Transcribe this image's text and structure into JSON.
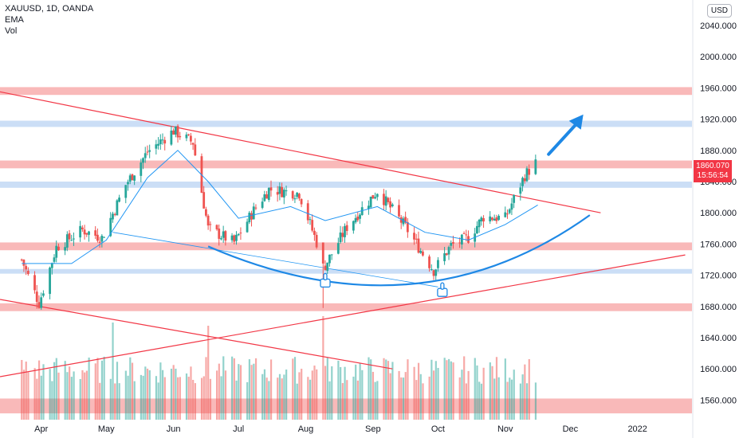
{
  "header": {
    "symbol_line": "XAUUSD, 1D, OANDA",
    "indicator_1": "EMA",
    "indicator_2": "Vol"
  },
  "currency": "USD",
  "last_price": {
    "value": "1860.070",
    "countdown": "15:56:54",
    "color": "#f23645"
  },
  "colors": {
    "up": "#26a69a",
    "down": "#ef5350",
    "ema": "#2196f3",
    "resistance_zone": "#f7a8a8",
    "support_zone": "#b9d3f3",
    "trendline": "#f23645",
    "arc": "#1e88e5",
    "arrow": "#1e88e5",
    "thumb_icon": "#1e88e5"
  },
  "chart_data": {
    "type": "candlestick",
    "title": "XAUUSD, 1D, OANDA",
    "ylim": [
      1540,
      2060
    ],
    "y_ticks": [
      "2040.000",
      "2000.000",
      "1960.000",
      "1920.000",
      "1880.000",
      "1840.000",
      "1800.000",
      "1760.000",
      "1720.000",
      "1680.000",
      "1640.000",
      "1600.000",
      "1560.000"
    ],
    "x_ticks": [
      "Apr",
      "May",
      "Jun",
      "Jul",
      "Aug",
      "Sep",
      "Oct",
      "Nov",
      "Dec",
      "2022"
    ],
    "price_path": [
      {
        "date": "2021-03-23",
        "close": 1740
      },
      {
        "date": "2021-03-31",
        "close": 1684
      },
      {
        "date": "2021-04-08",
        "close": 1756
      },
      {
        "date": "2021-04-20",
        "close": 1778
      },
      {
        "date": "2021-04-29",
        "close": 1768
      },
      {
        "date": "2021-05-10",
        "close": 1836
      },
      {
        "date": "2021-05-20",
        "close": 1878
      },
      {
        "date": "2021-06-01",
        "close": 1905
      },
      {
        "date": "2021-06-10",
        "close": 1890
      },
      {
        "date": "2021-06-17",
        "close": 1780
      },
      {
        "date": "2021-06-29",
        "close": 1762
      },
      {
        "date": "2021-07-08",
        "close": 1803
      },
      {
        "date": "2021-07-15",
        "close": 1830
      },
      {
        "date": "2021-07-29",
        "close": 1825
      },
      {
        "date": "2021-08-06",
        "close": 1762
      },
      {
        "date": "2021-08-09",
        "close": 1728
      },
      {
        "date": "2021-08-20",
        "close": 1782
      },
      {
        "date": "2021-09-03",
        "close": 1828
      },
      {
        "date": "2021-09-16",
        "close": 1782
      },
      {
        "date": "2021-09-29",
        "close": 1726
      },
      {
        "date": "2021-10-07",
        "close": 1758
      },
      {
        "date": "2021-10-15",
        "close": 1768
      },
      {
        "date": "2021-10-22",
        "close": 1795
      },
      {
        "date": "2021-11-01",
        "close": 1793
      },
      {
        "date": "2021-11-05",
        "close": 1818
      },
      {
        "date": "2021-11-10",
        "close": 1848
      },
      {
        "date": "2021-11-15",
        "close": 1864
      }
    ],
    "ema_path": [
      {
        "date": "2021-03-23",
        "value": 1735
      },
      {
        "date": "2021-04-15",
        "value": 1735
      },
      {
        "date": "2021-05-01",
        "value": 1765
      },
      {
        "date": "2021-05-20",
        "value": 1845
      },
      {
        "date": "2021-06-03",
        "value": 1880
      },
      {
        "date": "2021-06-17",
        "value": 1840
      },
      {
        "date": "2021-07-01",
        "value": 1793
      },
      {
        "date": "2021-07-25",
        "value": 1808
      },
      {
        "date": "2021-08-10",
        "value": 1790
      },
      {
        "date": "2021-09-03",
        "value": 1808
      },
      {
        "date": "2021-09-25",
        "value": 1775
      },
      {
        "date": "2021-10-15",
        "value": 1765
      },
      {
        "date": "2021-11-01",
        "value": 1785
      },
      {
        "date": "2021-11-16",
        "value": 1810
      }
    ],
    "zones": [
      {
        "kind": "resistance",
        "from": 1951,
        "to": 1961
      },
      {
        "kind": "support",
        "from": 1910,
        "to": 1918
      },
      {
        "kind": "resistance",
        "from": 1857,
        "to": 1867
      },
      {
        "kind": "support",
        "from": 1832,
        "to": 1840
      },
      {
        "kind": "resistance",
        "from": 1752,
        "to": 1762
      },
      {
        "kind": "support",
        "from": 1722,
        "to": 1728
      },
      {
        "kind": "resistance",
        "from": 1674,
        "to": 1684
      },
      {
        "kind": "resistance",
        "from": 1543,
        "to": 1562
      }
    ],
    "trendlines": [
      {
        "p1": {
          "date": "2021-03-13",
          "price": 1955
        },
        "p2": {
          "date": "2021-12-15",
          "price": 1800
        }
      },
      {
        "p1": {
          "date": "2021-03-13",
          "price": 1590
        },
        "p2": {
          "date": "2022-01-23",
          "price": 1746
        }
      },
      {
        "p1": {
          "date": "2021-03-13",
          "price": 1689
        },
        "p2": {
          "date": "2021-09-10",
          "price": 1600
        }
      },
      {
        "p1": {
          "date": "2021-05-04",
          "price": 1775
        },
        "p2": {
          "date": "2021-10-01",
          "price": 1705
        }
      }
    ],
    "arc": {
      "start": {
        "date": "2021-06-17",
        "price": 1757
      },
      "control": {
        "date": "2021-09-22",
        "price": 1640
      },
      "end": {
        "date": "2021-12-10",
        "price": 1797
      }
    },
    "arrow": {
      "from": {
        "date": "2021-11-21",
        "price": 1875
      },
      "to": {
        "date": "2021-12-07",
        "price": 1926
      }
    },
    "thumb_markers": [
      {
        "date": "2021-08-10",
        "price": 1712
      },
      {
        "date": "2021-10-03",
        "price": 1700
      }
    ]
  }
}
